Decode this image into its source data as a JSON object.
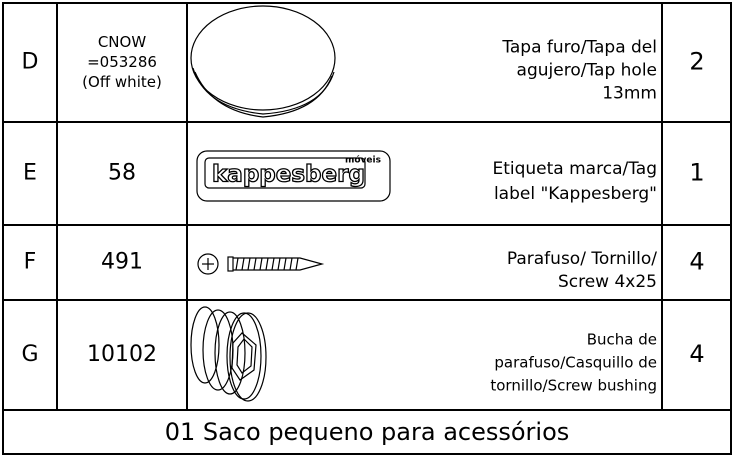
{
  "table": {
    "rows": [
      {
        "id": "D",
        "code": [
          "CNOW",
          "=053286",
          "(Off white)"
        ],
        "description": [
          "Tapa furo/Tapa del",
          "agujero/Tap hole",
          "13mm"
        ],
        "quantity": "2"
      },
      {
        "id": "E",
        "code": [
          "58"
        ],
        "description": [
          "Etiqueta marca/Tag",
          "label \"Kappesberg\""
        ],
        "quantity": "1"
      },
      {
        "id": "F",
        "code": [
          "491"
        ],
        "description": [
          "Parafuso/ Tornillo/",
          "Screw 4x25"
        ],
        "quantity": "4"
      },
      {
        "id": "G",
        "code": [
          "10102"
        ],
        "description": [
          "Bucha de",
          "parafuso/Casquillo de",
          "tornillo/Screw bushing"
        ],
        "quantity": "4"
      }
    ],
    "footer": "01 Saco pequeno para acessórios"
  },
  "logo": {
    "brand": "kappesberg",
    "tagline": "móveis"
  }
}
